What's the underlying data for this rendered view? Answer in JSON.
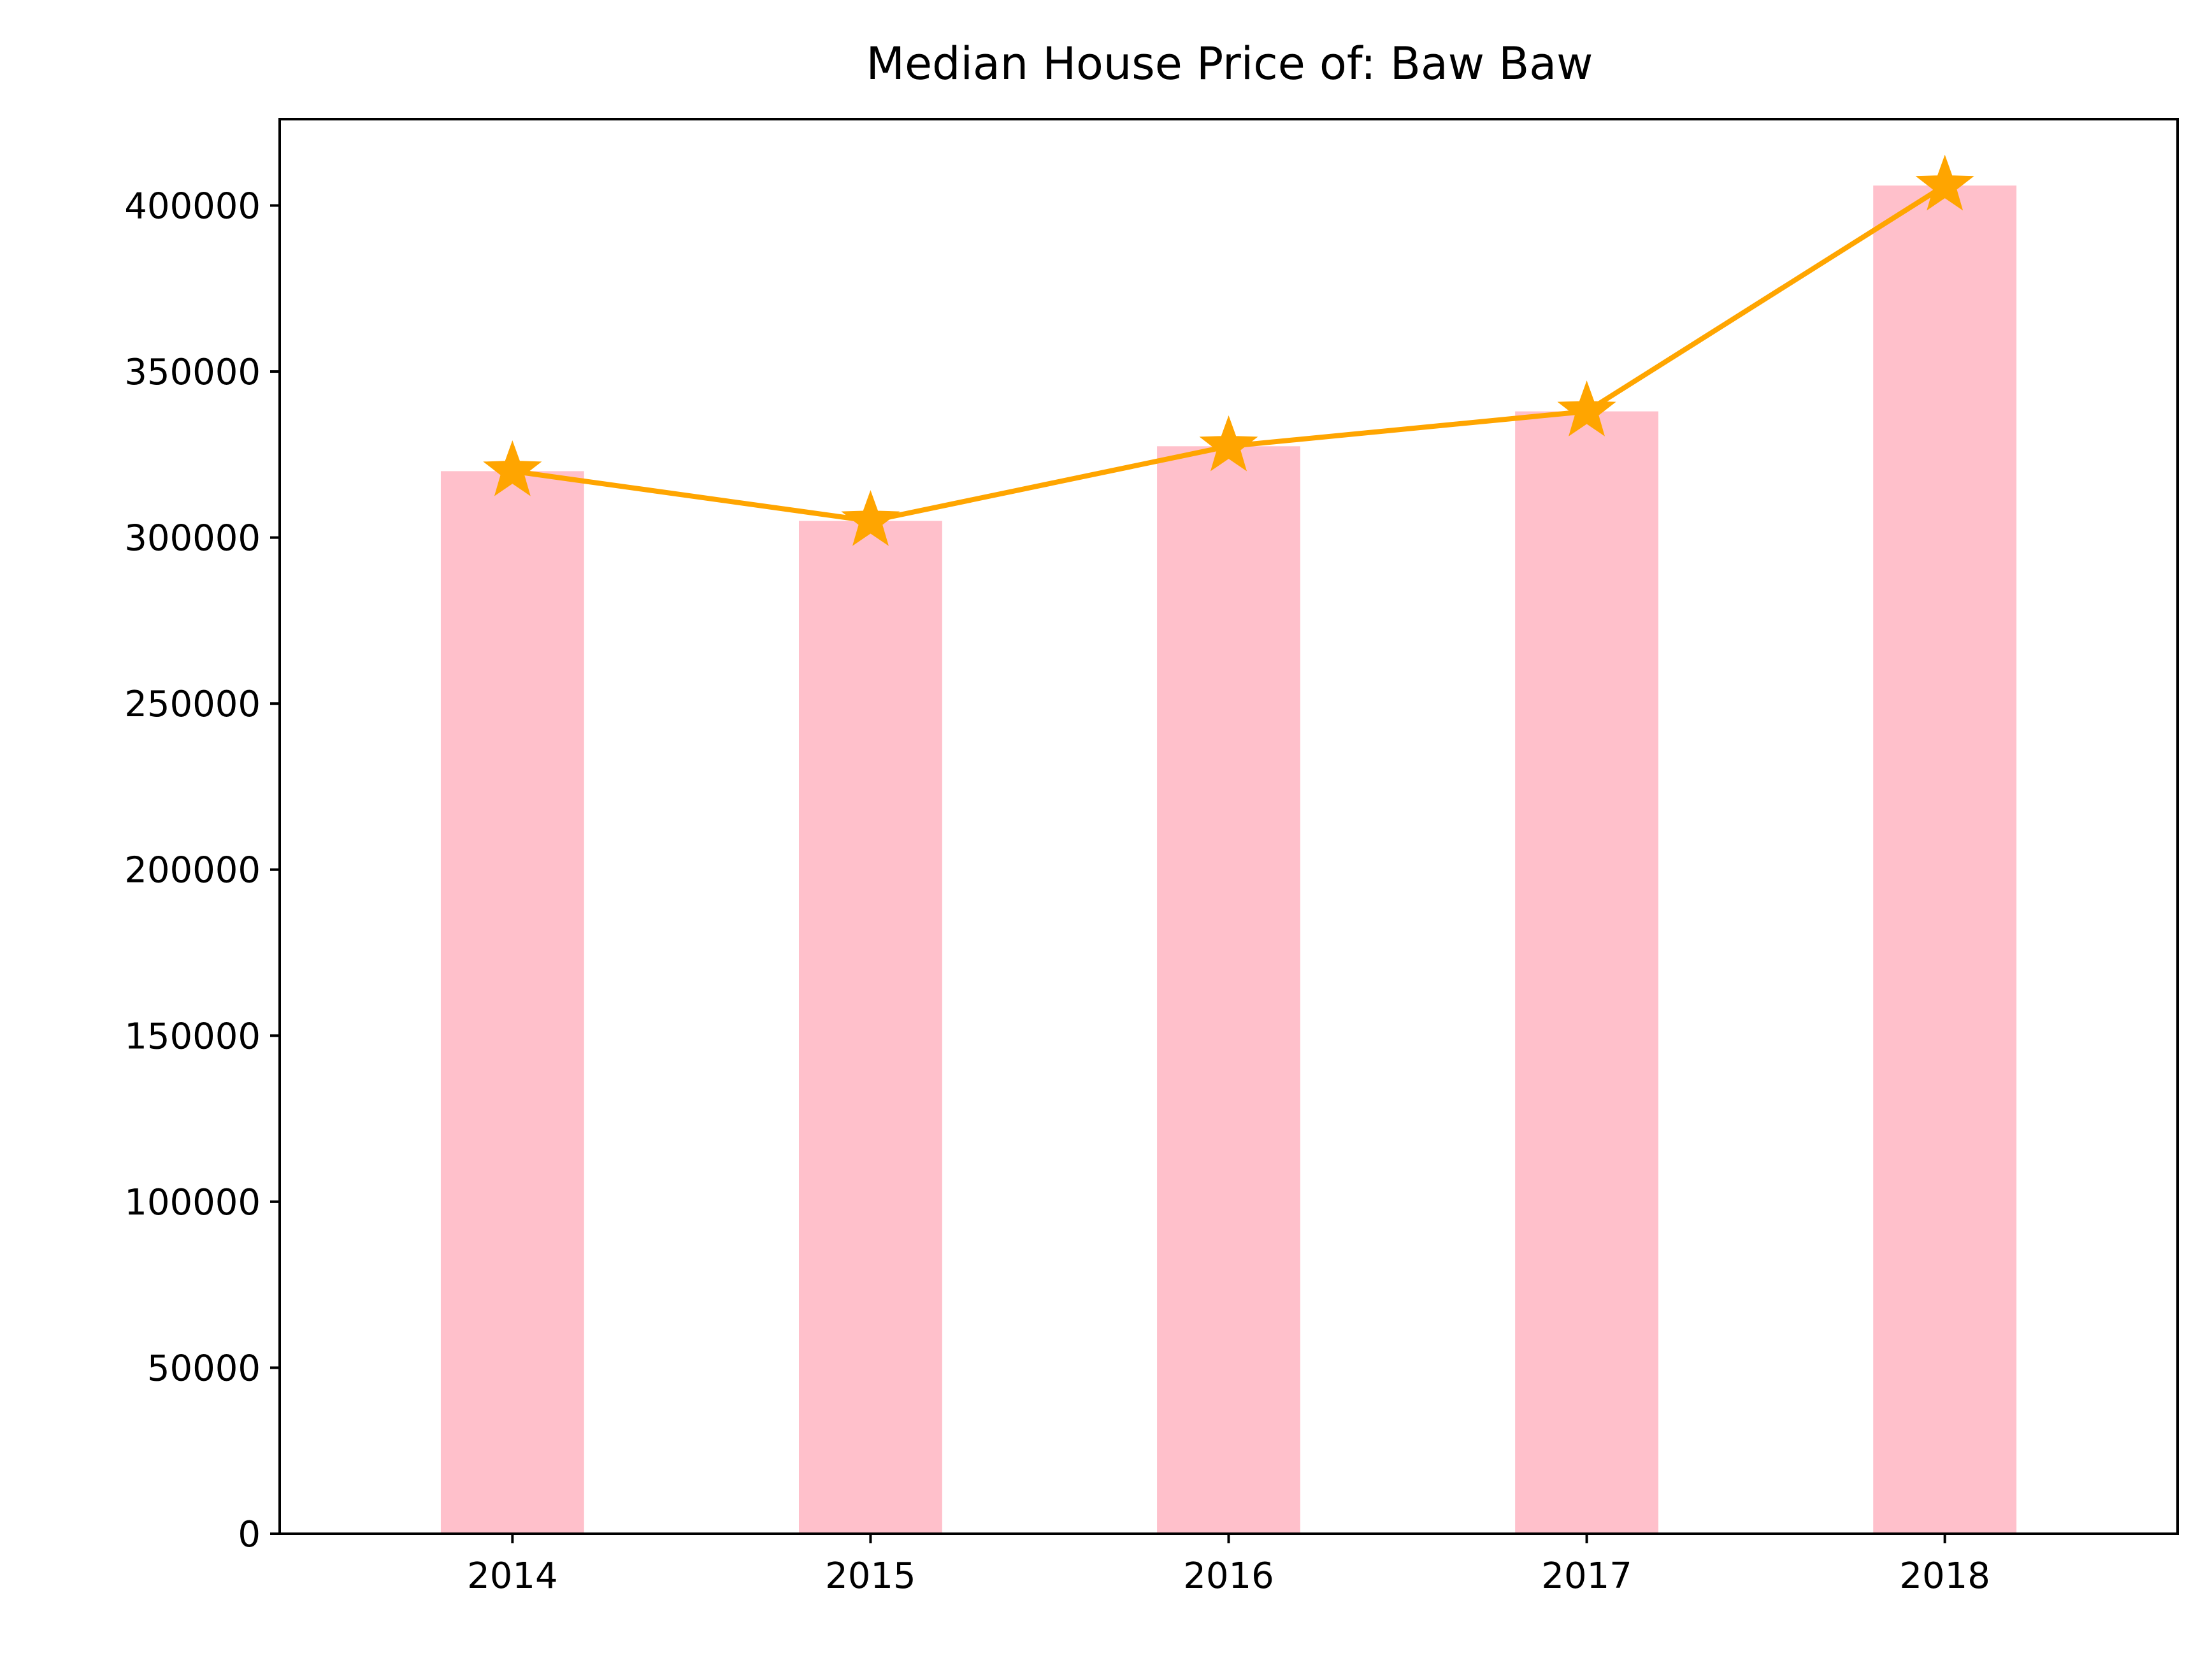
{
  "chart_data": {
    "type": "bar",
    "title": "Median House Price of: Baw Baw",
    "xlabel": "",
    "ylabel": "",
    "categories": [
      "2014",
      "2015",
      "2016",
      "2017",
      "2018"
    ],
    "series": [
      {
        "type": "bar",
        "values": [
          320000,
          305000,
          327500,
          338000,
          406000
        ],
        "color": "#ffc0cb"
      },
      {
        "type": "line",
        "marker": "star",
        "values": [
          320000,
          305000,
          327500,
          338000,
          406000
        ],
        "color": "#ffa500"
      }
    ],
    "ylim": [
      0,
      426000
    ],
    "yticks": [
      0,
      50000,
      100000,
      150000,
      200000,
      250000,
      300000,
      350000,
      400000
    ],
    "grid": false,
    "legend": "none"
  }
}
